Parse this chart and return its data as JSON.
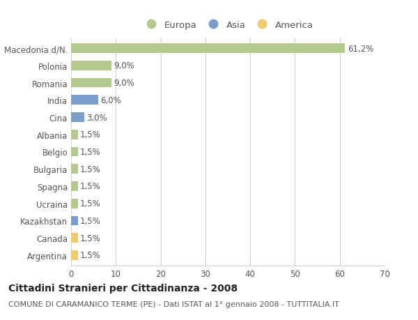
{
  "categories": [
    "Macedonia d/N.",
    "Polonia",
    "Romania",
    "India",
    "Cina",
    "Albania",
    "Belgio",
    "Bulgaria",
    "Spagna",
    "Ucraina",
    "Kazakhstan",
    "Canada",
    "Argentina"
  ],
  "values": [
    61.2,
    9.0,
    9.0,
    6.0,
    3.0,
    1.5,
    1.5,
    1.5,
    1.5,
    1.5,
    1.5,
    1.5,
    1.5
  ],
  "labels": [
    "61,2%",
    "9,0%",
    "9,0%",
    "6,0%",
    "3,0%",
    "1,5%",
    "1,5%",
    "1,5%",
    "1,5%",
    "1,5%",
    "1,5%",
    "1,5%",
    "1,5%"
  ],
  "continents": [
    "Europa",
    "Europa",
    "Europa",
    "Asia",
    "Asia",
    "Europa",
    "Europa",
    "Europa",
    "Europa",
    "Europa",
    "Asia",
    "America",
    "America"
  ],
  "colors": {
    "Europa": "#b5c98e",
    "Asia": "#7b9dc9",
    "America": "#f0cc6a"
  },
  "legend_items": [
    "Europa",
    "Asia",
    "America"
  ],
  "legend_colors": [
    "#b5c98e",
    "#7b9dc9",
    "#f0cc6a"
  ],
  "xlim": [
    0,
    70
  ],
  "xticks": [
    0,
    10,
    20,
    30,
    40,
    50,
    60,
    70
  ],
  "title": "Cittadini Stranieri per Cittadinanza - 2008",
  "subtitle": "COMUNE DI CARAMANICO TERME (PE) - Dati ISTAT al 1° gennaio 2008 - TUTTITALIA.IT",
  "background_color": "#ffffff",
  "grid_color": "#d0d0d0",
  "bar_height": 0.55,
  "title_fontsize": 10,
  "subtitle_fontsize": 8,
  "label_fontsize": 8.5,
  "tick_fontsize": 8.5,
  "legend_fontsize": 9.5
}
